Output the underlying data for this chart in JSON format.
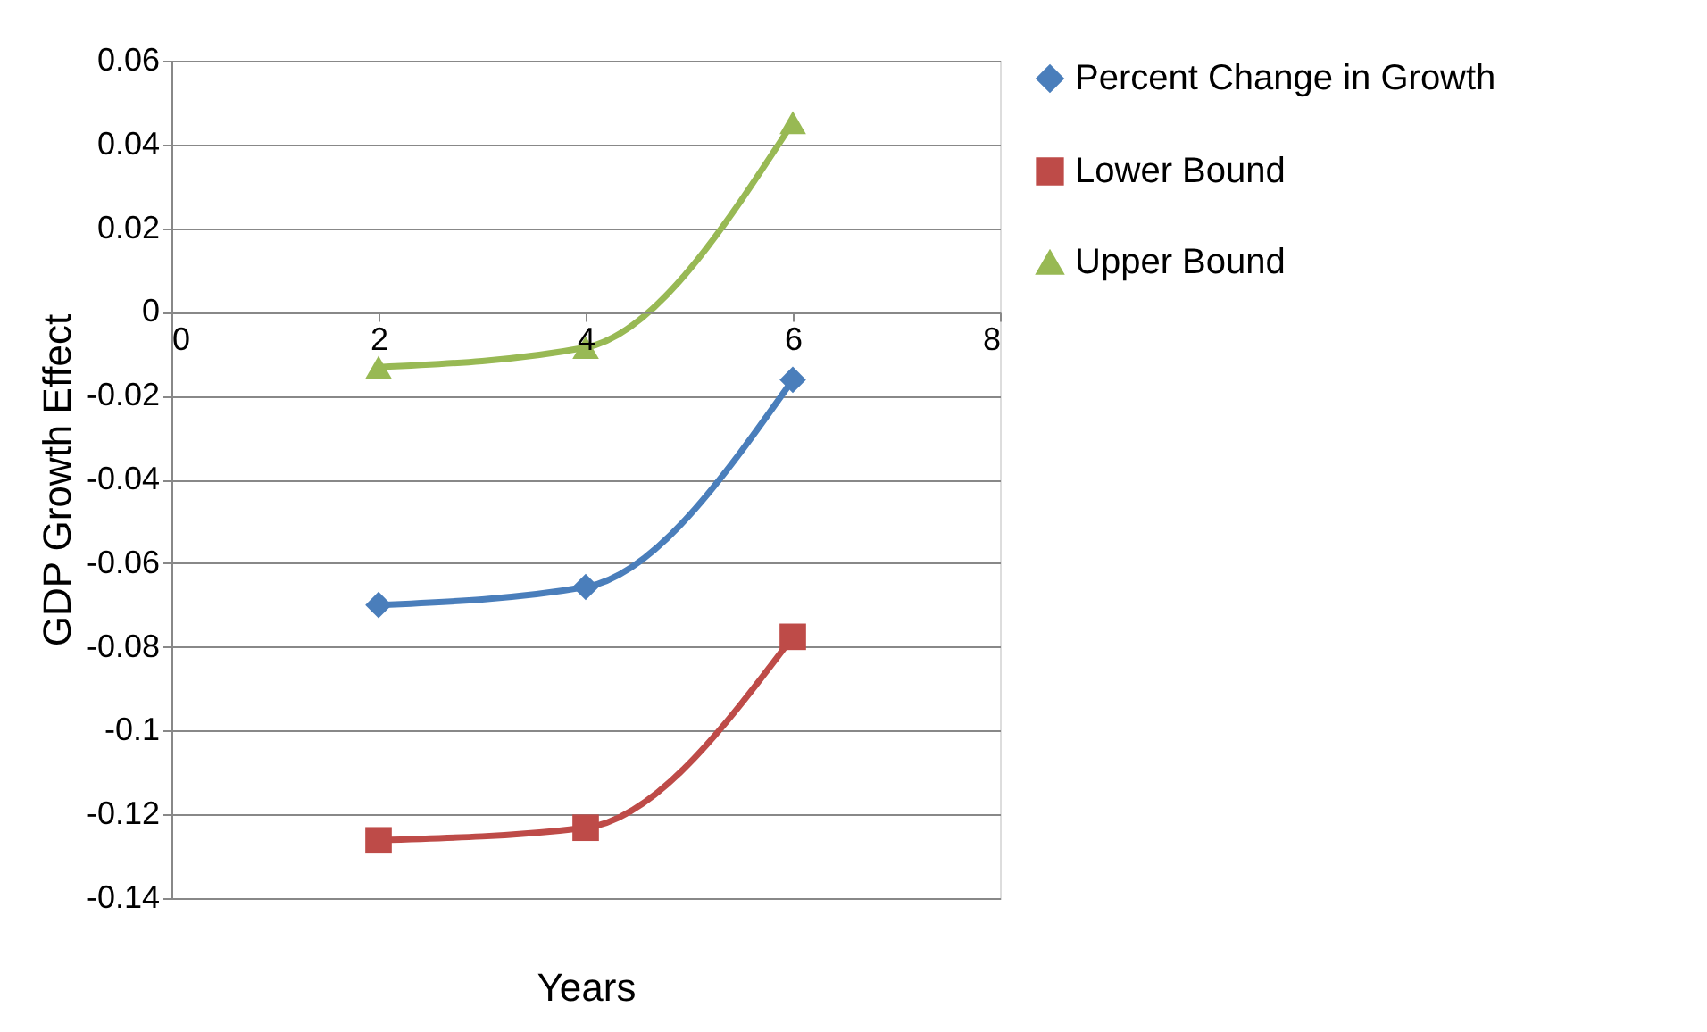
{
  "chart_data": {
    "type": "line",
    "xlabel": "Years",
    "ylabel": "GDP Growth  Effect",
    "x": [
      2,
      4,
      6
    ],
    "series": [
      {
        "name": "Percent Change in Growth",
        "color": "#4a7ebb",
        "marker": "diamond",
        "values": [
          -0.07,
          -0.0657,
          -0.0162
        ]
      },
      {
        "name": "Lower Bound",
        "color": "#be4b48",
        "marker": "square",
        "values": [
          -0.1262,
          -0.1232,
          -0.0776
        ]
      },
      {
        "name": "Upper Bound",
        "color": "#98b954",
        "marker": "triangle",
        "values": [
          -0.0132,
          -0.0085,
          0.0452
        ]
      }
    ],
    "xlim": [
      0,
      8
    ],
    "xticks": [
      0,
      2,
      4,
      6,
      8
    ],
    "ylim": [
      -0.14,
      0.06
    ],
    "yticks": [
      -0.14,
      -0.12,
      -0.1,
      -0.08,
      -0.06,
      -0.04,
      -0.02,
      0,
      0.02,
      0.04,
      0.06
    ],
    "grid": "y",
    "legend": "right"
  }
}
